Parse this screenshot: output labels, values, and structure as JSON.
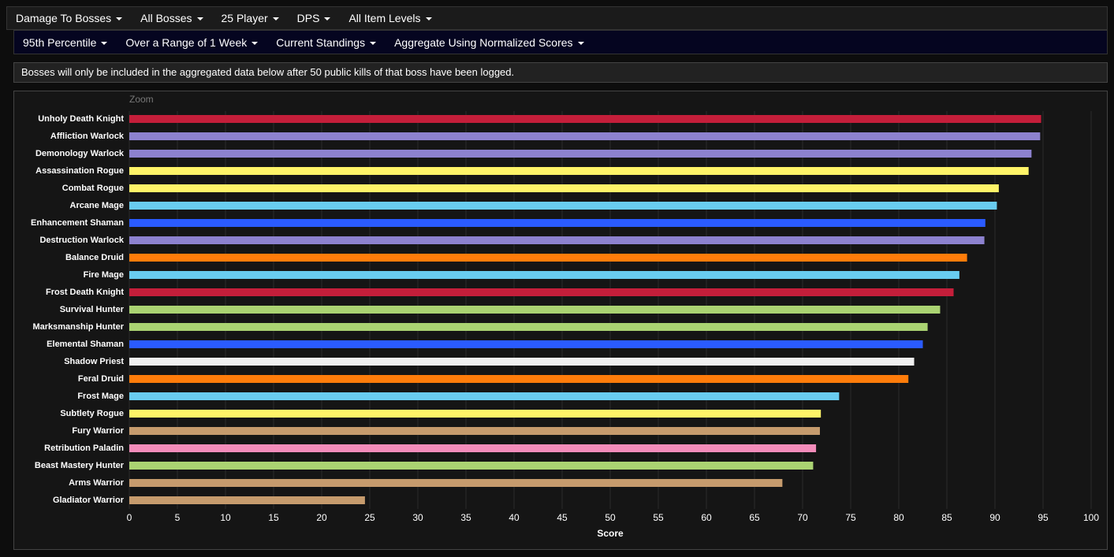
{
  "menu_primary": [
    "Damage To Bosses",
    "All Bosses",
    "25 Player",
    "DPS",
    "All Item Levels"
  ],
  "menu_secondary": [
    "95th Percentile",
    "Over a Range of 1 Week",
    "Current Standings",
    "Aggregate Using Normalized Scores"
  ],
  "notice": "Bosses will only be included in the aggregated data below after 50 public kills of that boss have been logged.",
  "chart_data": {
    "type": "hbar",
    "zoom_label": "Zoom",
    "x_axis_title": "Score",
    "categories": [
      "Unholy Death Knight",
      "Affliction Warlock",
      "Demonology Warlock",
      "Assassination Rogue",
      "Combat Rogue",
      "Arcane Mage",
      "Enhancement Shaman",
      "Destruction Warlock",
      "Balance Druid",
      "Fire Mage",
      "Frost Death Knight",
      "Survival Hunter",
      "Marksmanship Hunter",
      "Elemental Shaman",
      "Shadow Priest",
      "Feral Druid",
      "Frost Mage",
      "Subtlety Rogue",
      "Fury Warrior",
      "Retribution Paladin",
      "Beast Mastery Hunter",
      "Arms Warrior",
      "Gladiator Warrior"
    ],
    "values": [
      94.8,
      94.7,
      93.8,
      93.5,
      90.4,
      90.2,
      89.0,
      88.9,
      87.1,
      86.3,
      85.7,
      84.3,
      83.0,
      82.5,
      81.6,
      81.0,
      73.8,
      71.9,
      71.8,
      71.4,
      71.1,
      67.9,
      24.5
    ],
    "colors": [
      "#c41e3a",
      "#8d82cf",
      "#8d82cf",
      "#fff468",
      "#fff468",
      "#69ccf0",
      "#2a5bff",
      "#8d82cf",
      "#ff7c0a",
      "#69ccf0",
      "#c41e3a",
      "#aad372",
      "#aad372",
      "#2a5bff",
      "#f0f0f0",
      "#ff7c0a",
      "#69ccf0",
      "#fff468",
      "#c69b6d",
      "#f48cba",
      "#aad372",
      "#c69b6d",
      "#c69b6d"
    ],
    "xlim": [
      0,
      100
    ],
    "xticks": [
      0,
      5,
      10,
      15,
      20,
      25,
      30,
      35,
      40,
      45,
      50,
      55,
      60,
      65,
      70,
      75,
      80,
      85,
      90,
      95,
      100
    ],
    "grid": true
  }
}
